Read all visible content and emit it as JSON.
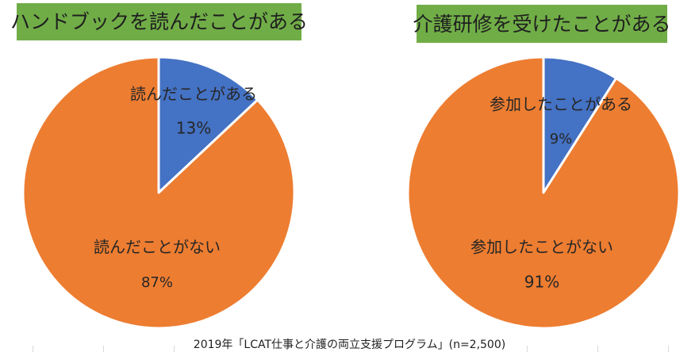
{
  "colors": {
    "slice_yes": "#4472c4",
    "slice_no": "#ed7d31",
    "title_bg": "#70ad47",
    "slice_border": "#ffffff"
  },
  "chart_data": [
    {
      "type": "pie",
      "title": "ハンドブックを読んだことがある",
      "slices": [
        {
          "label": "読んだことがある",
          "value": 13,
          "value_label": "13%",
          "color": "#4472c4"
        },
        {
          "label": "読んだことがない",
          "value": 87,
          "value_label": "87%",
          "color": "#ed7d31"
        }
      ]
    },
    {
      "type": "pie",
      "title": "介護研修を受けたことがある",
      "slices": [
        {
          "label": "参加したことがある",
          "value": 9,
          "value_label": "9%",
          "color": "#4472c4"
        },
        {
          "label": "参加したことがない",
          "value": 91,
          "value_label": "91%",
          "color": "#ed7d31"
        }
      ]
    }
  ],
  "footer": {
    "source": "2019年「LCAT仕事と介護の両立支援プログラム」(n=2,500)"
  }
}
